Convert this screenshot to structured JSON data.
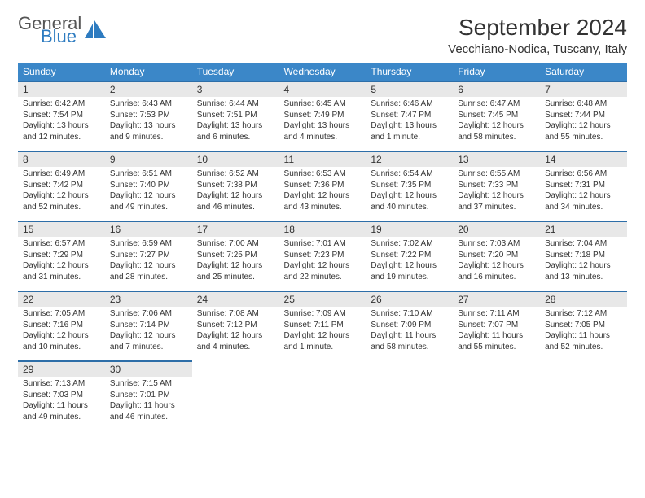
{
  "brand": {
    "part1": "General",
    "part2": "Blue",
    "color1": "#555555",
    "color2": "#2d7bc0"
  },
  "title": "September 2024",
  "location": "Vecchiano-Nodica, Tuscany, Italy",
  "header_bg": "#3b87c8",
  "header_fg": "#ffffff",
  "daynum_bg": "#e8e8e8",
  "daynum_border": "#2d6ea8",
  "background_color": "#ffffff",
  "text_color": "#333333",
  "fonts": {
    "title_size": 28,
    "location_size": 15,
    "header_size": 12,
    "body_size": 10
  },
  "weekdays": [
    "Sunday",
    "Monday",
    "Tuesday",
    "Wednesday",
    "Thursday",
    "Friday",
    "Saturday"
  ],
  "weeks": [
    [
      {
        "day": "1",
        "sunrise": "Sunrise: 6:42 AM",
        "sunset": "Sunset: 7:54 PM",
        "d1": "Daylight: 13 hours",
        "d2": "and 12 minutes."
      },
      {
        "day": "2",
        "sunrise": "Sunrise: 6:43 AM",
        "sunset": "Sunset: 7:53 PM",
        "d1": "Daylight: 13 hours",
        "d2": "and 9 minutes."
      },
      {
        "day": "3",
        "sunrise": "Sunrise: 6:44 AM",
        "sunset": "Sunset: 7:51 PM",
        "d1": "Daylight: 13 hours",
        "d2": "and 6 minutes."
      },
      {
        "day": "4",
        "sunrise": "Sunrise: 6:45 AM",
        "sunset": "Sunset: 7:49 PM",
        "d1": "Daylight: 13 hours",
        "d2": "and 4 minutes."
      },
      {
        "day": "5",
        "sunrise": "Sunrise: 6:46 AM",
        "sunset": "Sunset: 7:47 PM",
        "d1": "Daylight: 13 hours",
        "d2": "and 1 minute."
      },
      {
        "day": "6",
        "sunrise": "Sunrise: 6:47 AM",
        "sunset": "Sunset: 7:45 PM",
        "d1": "Daylight: 12 hours",
        "d2": "and 58 minutes."
      },
      {
        "day": "7",
        "sunrise": "Sunrise: 6:48 AM",
        "sunset": "Sunset: 7:44 PM",
        "d1": "Daylight: 12 hours",
        "d2": "and 55 minutes."
      }
    ],
    [
      {
        "day": "8",
        "sunrise": "Sunrise: 6:49 AM",
        "sunset": "Sunset: 7:42 PM",
        "d1": "Daylight: 12 hours",
        "d2": "and 52 minutes."
      },
      {
        "day": "9",
        "sunrise": "Sunrise: 6:51 AM",
        "sunset": "Sunset: 7:40 PM",
        "d1": "Daylight: 12 hours",
        "d2": "and 49 minutes."
      },
      {
        "day": "10",
        "sunrise": "Sunrise: 6:52 AM",
        "sunset": "Sunset: 7:38 PM",
        "d1": "Daylight: 12 hours",
        "d2": "and 46 minutes."
      },
      {
        "day": "11",
        "sunrise": "Sunrise: 6:53 AM",
        "sunset": "Sunset: 7:36 PM",
        "d1": "Daylight: 12 hours",
        "d2": "and 43 minutes."
      },
      {
        "day": "12",
        "sunrise": "Sunrise: 6:54 AM",
        "sunset": "Sunset: 7:35 PM",
        "d1": "Daylight: 12 hours",
        "d2": "and 40 minutes."
      },
      {
        "day": "13",
        "sunrise": "Sunrise: 6:55 AM",
        "sunset": "Sunset: 7:33 PM",
        "d1": "Daylight: 12 hours",
        "d2": "and 37 minutes."
      },
      {
        "day": "14",
        "sunrise": "Sunrise: 6:56 AM",
        "sunset": "Sunset: 7:31 PM",
        "d1": "Daylight: 12 hours",
        "d2": "and 34 minutes."
      }
    ],
    [
      {
        "day": "15",
        "sunrise": "Sunrise: 6:57 AM",
        "sunset": "Sunset: 7:29 PM",
        "d1": "Daylight: 12 hours",
        "d2": "and 31 minutes."
      },
      {
        "day": "16",
        "sunrise": "Sunrise: 6:59 AM",
        "sunset": "Sunset: 7:27 PM",
        "d1": "Daylight: 12 hours",
        "d2": "and 28 minutes."
      },
      {
        "day": "17",
        "sunrise": "Sunrise: 7:00 AM",
        "sunset": "Sunset: 7:25 PM",
        "d1": "Daylight: 12 hours",
        "d2": "and 25 minutes."
      },
      {
        "day": "18",
        "sunrise": "Sunrise: 7:01 AM",
        "sunset": "Sunset: 7:23 PM",
        "d1": "Daylight: 12 hours",
        "d2": "and 22 minutes."
      },
      {
        "day": "19",
        "sunrise": "Sunrise: 7:02 AM",
        "sunset": "Sunset: 7:22 PM",
        "d1": "Daylight: 12 hours",
        "d2": "and 19 minutes."
      },
      {
        "day": "20",
        "sunrise": "Sunrise: 7:03 AM",
        "sunset": "Sunset: 7:20 PM",
        "d1": "Daylight: 12 hours",
        "d2": "and 16 minutes."
      },
      {
        "day": "21",
        "sunrise": "Sunrise: 7:04 AM",
        "sunset": "Sunset: 7:18 PM",
        "d1": "Daylight: 12 hours",
        "d2": "and 13 minutes."
      }
    ],
    [
      {
        "day": "22",
        "sunrise": "Sunrise: 7:05 AM",
        "sunset": "Sunset: 7:16 PM",
        "d1": "Daylight: 12 hours",
        "d2": "and 10 minutes."
      },
      {
        "day": "23",
        "sunrise": "Sunrise: 7:06 AM",
        "sunset": "Sunset: 7:14 PM",
        "d1": "Daylight: 12 hours",
        "d2": "and 7 minutes."
      },
      {
        "day": "24",
        "sunrise": "Sunrise: 7:08 AM",
        "sunset": "Sunset: 7:12 PM",
        "d1": "Daylight: 12 hours",
        "d2": "and 4 minutes."
      },
      {
        "day": "25",
        "sunrise": "Sunrise: 7:09 AM",
        "sunset": "Sunset: 7:11 PM",
        "d1": "Daylight: 12 hours",
        "d2": "and 1 minute."
      },
      {
        "day": "26",
        "sunrise": "Sunrise: 7:10 AM",
        "sunset": "Sunset: 7:09 PM",
        "d1": "Daylight: 11 hours",
        "d2": "and 58 minutes."
      },
      {
        "day": "27",
        "sunrise": "Sunrise: 7:11 AM",
        "sunset": "Sunset: 7:07 PM",
        "d1": "Daylight: 11 hours",
        "d2": "and 55 minutes."
      },
      {
        "day": "28",
        "sunrise": "Sunrise: 7:12 AM",
        "sunset": "Sunset: 7:05 PM",
        "d1": "Daylight: 11 hours",
        "d2": "and 52 minutes."
      }
    ],
    [
      {
        "day": "29",
        "sunrise": "Sunrise: 7:13 AM",
        "sunset": "Sunset: 7:03 PM",
        "d1": "Daylight: 11 hours",
        "d2": "and 49 minutes."
      },
      {
        "day": "30",
        "sunrise": "Sunrise: 7:15 AM",
        "sunset": "Sunset: 7:01 PM",
        "d1": "Daylight: 11 hours",
        "d2": "and 46 minutes."
      },
      null,
      null,
      null,
      null,
      null
    ]
  ]
}
